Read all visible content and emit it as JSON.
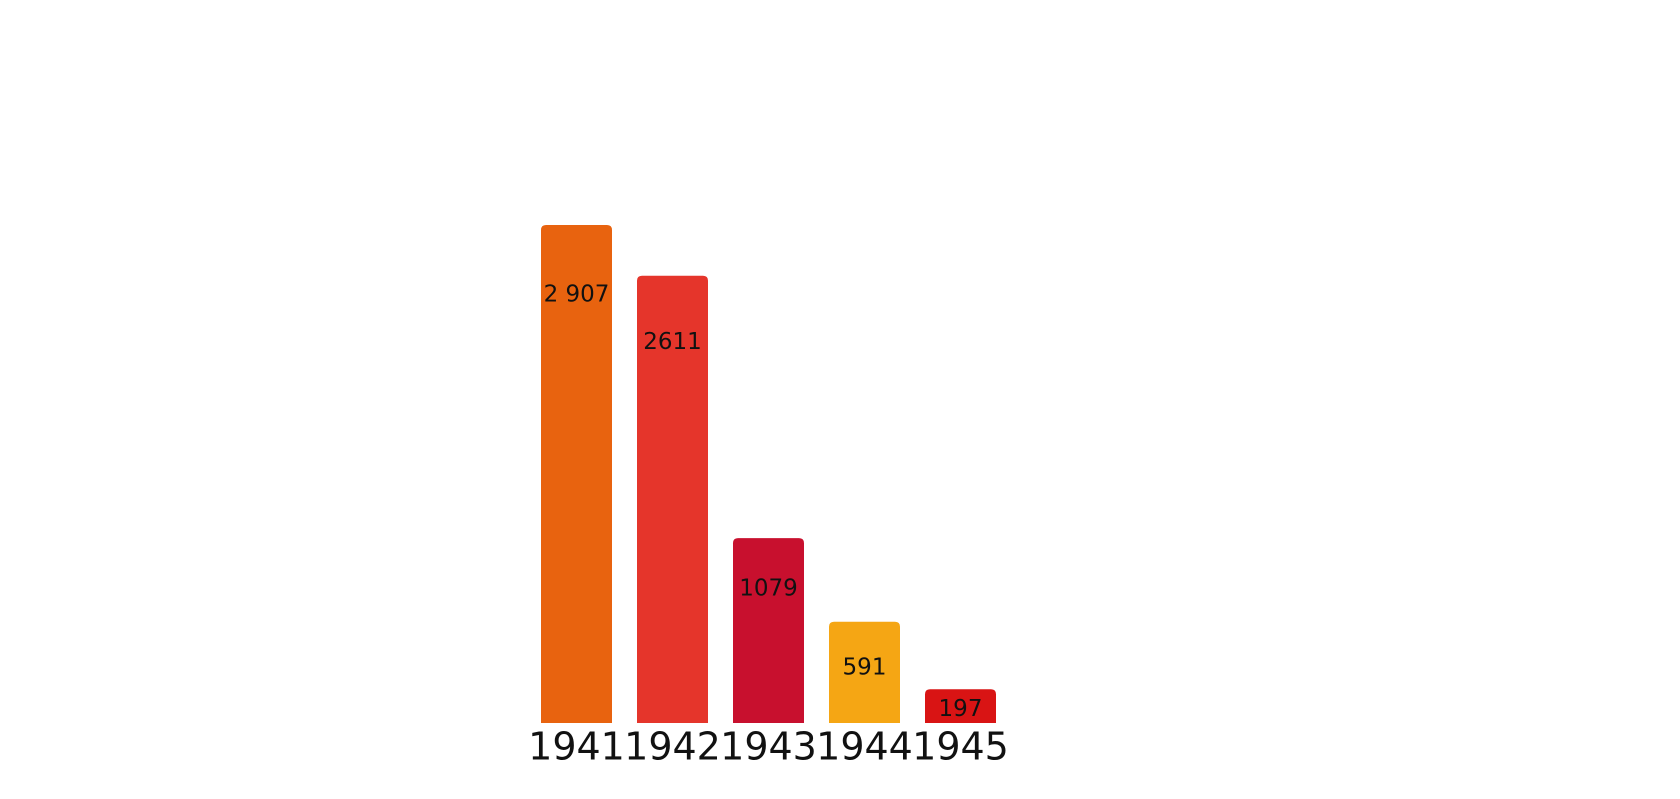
{
  "chart_data": {
    "type": "bar",
    "categories": [
      "1941",
      "1942",
      "1943",
      "1944",
      "1945"
    ],
    "values": [
      2907,
      2611,
      1079,
      591,
      197
    ],
    "value_labels": [
      "2 907",
      "2611",
      "1079",
      "591",
      "197"
    ],
    "colors": [
      "#e8630f",
      "#e5352b",
      "#c8102e",
      "#f5a614",
      "#d91414"
    ]
  }
}
